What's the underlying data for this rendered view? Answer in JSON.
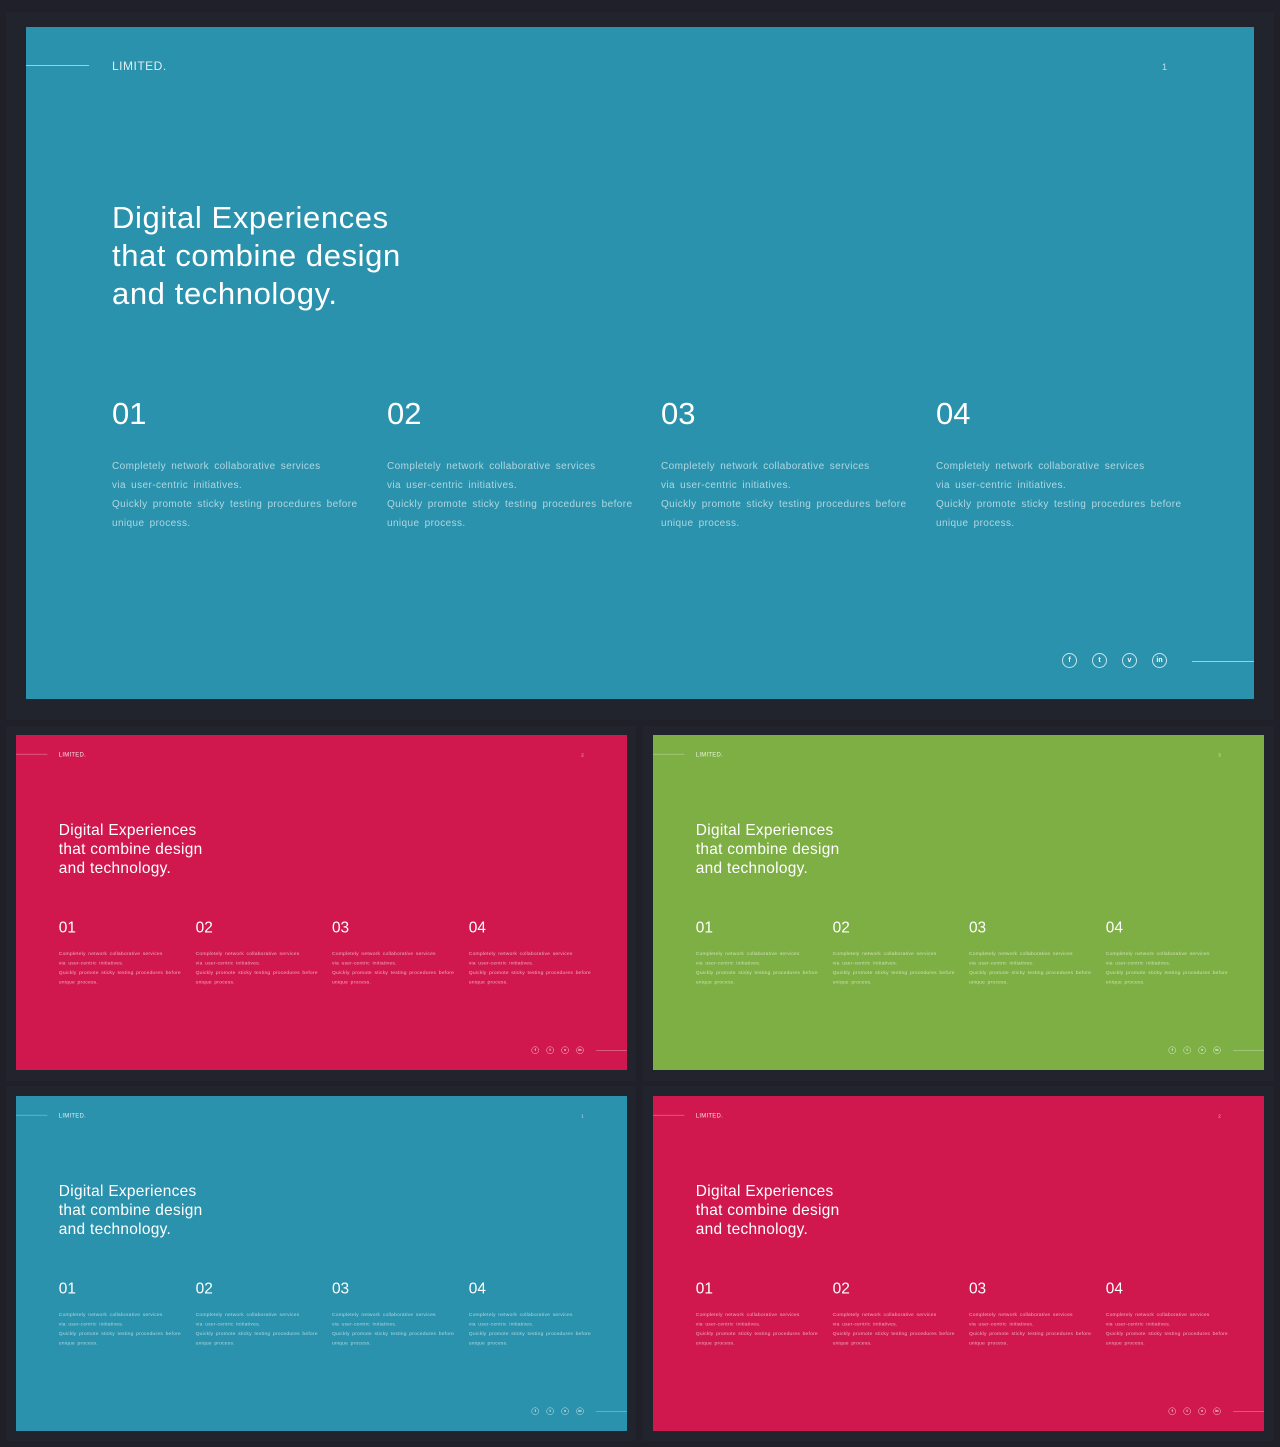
{
  "brand": "LIMITED.",
  "headline": [
    "Digital Experiences",
    "that combine design",
    "and technology."
  ],
  "columns": [
    {
      "num": "01",
      "lines": [
        "Completely network collaborative services",
        "via user-centric initiatives.",
        "Quickly promote sticky testing procedures before",
        "unique process."
      ]
    },
    {
      "num": "02",
      "lines": [
        "Completely network collaborative services",
        "via user-centric initiatives.",
        "Quickly promote sticky testing procedures before",
        "unique process."
      ]
    },
    {
      "num": "03",
      "lines": [
        "Completely network collaborative services",
        "via user-centric initiatives.",
        "Quickly promote sticky testing procedures before",
        "unique process."
      ]
    },
    {
      "num": "04",
      "lines": [
        "Completely network collaborative services",
        "via user-centric initiatives.",
        "Quickly promote sticky testing procedures before",
        "unique process."
      ]
    }
  ],
  "social_icons": [
    {
      "name": "facebook-icon",
      "glyph": "f"
    },
    {
      "name": "twitter-icon",
      "glyph": "t"
    },
    {
      "name": "vimeo-icon",
      "glyph": "v"
    },
    {
      "name": "linkedin-icon",
      "glyph": "in"
    }
  ],
  "slides": [
    {
      "name": "slide-1-blue-large",
      "color": "#2a92ad",
      "page": "1"
    },
    {
      "name": "slide-2-red",
      "color": "#d0184f",
      "page": "2"
    },
    {
      "name": "slide-3-green",
      "color": "#7eaf44",
      "page": "3"
    },
    {
      "name": "slide-4-blue",
      "color": "#2a92ad",
      "page": "1"
    },
    {
      "name": "slide-5-red",
      "color": "#d0184f",
      "page": "2"
    }
  ]
}
